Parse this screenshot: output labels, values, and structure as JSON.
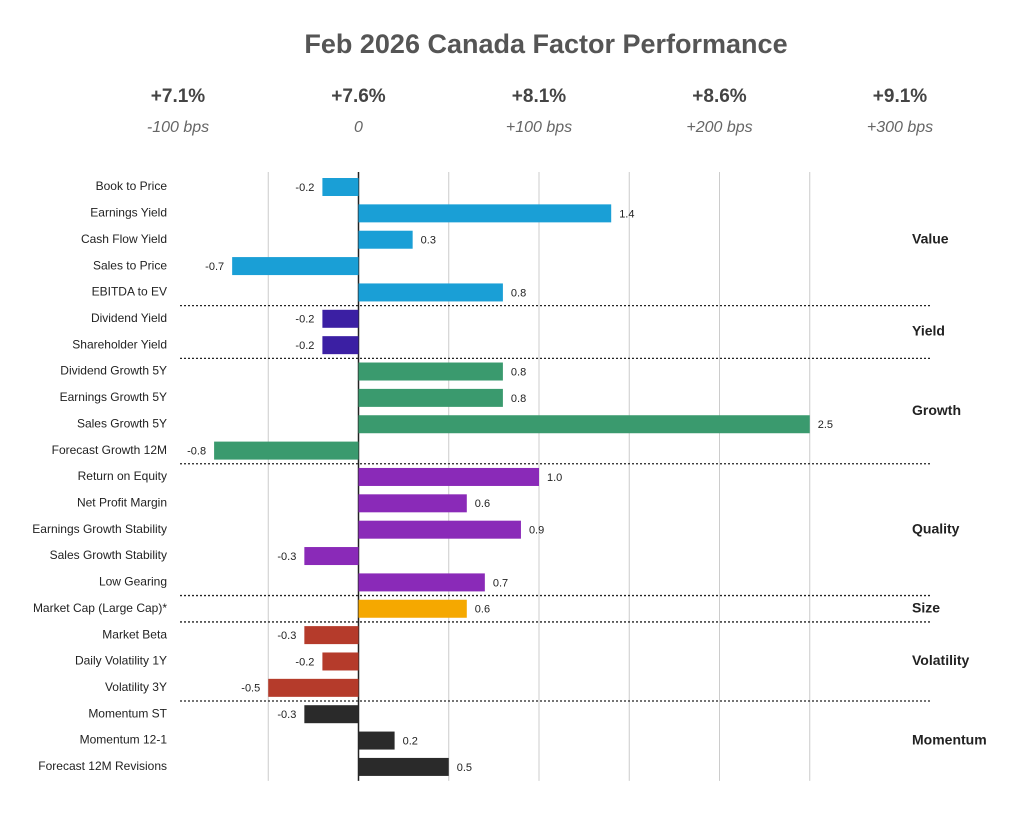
{
  "chart_data": {
    "type": "grouped-hbar",
    "title": "Feb 2026 Canada Factor Performance",
    "xlim": [
      -1,
      3
    ],
    "top_axis": [
      {
        "value": -1,
        "label": "+7.1%",
        "bps": "-100 bps"
      },
      {
        "value": 0,
        "label": "+7.6%",
        "bps": "0"
      },
      {
        "value": 1,
        "label": "+8.1%",
        "bps": "+100 bps"
      },
      {
        "value": 2,
        "label": "+8.6%",
        "bps": "+200 bps"
      },
      {
        "value": 3,
        "label": "+9.1%",
        "bps": "+300 bps"
      }
    ],
    "gridlines": [
      -0.5,
      0,
      0.5,
      1,
      1.5,
      2,
      2.5
    ],
    "groups": [
      {
        "name": "Value",
        "color": "#1a9fd6",
        "categories": [
          "Book to Price",
          "Earnings Yield",
          "Cash Flow Yield",
          "Sales to Price",
          "EBITDA to EV"
        ],
        "values": [
          -0.2,
          1.4,
          0.3,
          -0.7,
          0.8
        ]
      },
      {
        "name": "Yield",
        "color": "#3b1fa3",
        "categories": [
          "Dividend Yield",
          "Shareholder Yield"
        ],
        "values": [
          -0.2,
          -0.2
        ]
      },
      {
        "name": "Growth",
        "color": "#3a9a6e",
        "categories": [
          "Dividend Growth 5Y",
          "Earnings Growth 5Y",
          "Sales Growth 5Y",
          "Forecast Growth 12M"
        ],
        "values": [
          0.8,
          0.8,
          2.5,
          -0.8
        ]
      },
      {
        "name": "Quality",
        "color": "#8a2ab8",
        "categories": [
          "Return on Equity",
          "Net Profit Margin",
          "Earnings Growth Stability",
          "Sales Growth Stability",
          "Low Gearing"
        ],
        "values": [
          1,
          0.6,
          0.9,
          -0.3,
          0.7
        ],
        "value_labels": [
          "1.0",
          "0.6",
          "0.9",
          "-0.3",
          "0.7"
        ]
      },
      {
        "name": "Size",
        "color": "#f5a800",
        "categories": [
          "Market Cap (Large Cap)*"
        ],
        "values": [
          0.6
        ]
      },
      {
        "name": "Volatility",
        "color": "#b53b2b",
        "categories": [
          "Market Beta",
          "Daily Volatility 1Y",
          "Volatility 3Y"
        ],
        "values": [
          -0.3,
          -0.2,
          -0.5
        ]
      },
      {
        "name": "Momentum",
        "color": "#2a2a2a",
        "categories": [
          "Momentum ST",
          "Momentum 12-1",
          "Forecast 12M Revisions"
        ],
        "values": [
          -0.3,
          0.2,
          0.5
        ]
      }
    ]
  }
}
